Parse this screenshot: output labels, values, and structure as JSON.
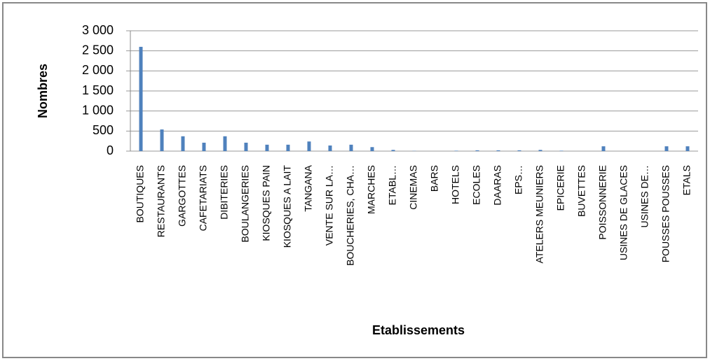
{
  "chart_data": {
    "type": "bar",
    "x_label": "Etablissements",
    "y_label": "Nombres",
    "categories": [
      "BOUTIQUES",
      "RESTAURANTS",
      "GARGOTTES",
      "CAFETARIATS",
      "DIBITERIES",
      "BOULANGERIES",
      "KIOSQUES PAIN",
      "KIOSQUES A LAIT",
      "TANGANA",
      "VENTE SUR LA…",
      "BOUCHERIES, CHA…",
      "MARCHES",
      "ETABL…",
      "CINEMAS",
      "BARS",
      "HOTELS",
      "ECOLES",
      "DAARAS",
      "EPS…",
      "ATELERS MEUNIERS",
      "EPICERIE",
      "BUVETTES",
      "POISSONNERIE",
      "USINES DE GLACES",
      "USINES DE…",
      "POUSSES POUSSES",
      "ETALS"
    ],
    "values": [
      2600,
      540,
      370,
      210,
      370,
      210,
      160,
      160,
      240,
      140,
      160,
      100,
      30,
      5,
      0,
      10,
      20,
      20,
      20,
      30,
      10,
      0,
      120,
      0,
      0,
      120,
      120
    ],
    "color": "#4f81bd",
    "ylim": [
      0,
      3000
    ],
    "yticks": [
      0,
      {
        "value": 500,
        "label": "500"
      },
      {
        "value": 1000,
        "label": "1 000"
      },
      {
        "value": 1500,
        "label": "1 500"
      },
      {
        "value": 2000,
        "label": "2 000"
      },
      {
        "value": 2500,
        "label": "2 500"
      },
      {
        "value": 3000,
        "label": "3 000"
      }
    ],
    "grid": true
  }
}
